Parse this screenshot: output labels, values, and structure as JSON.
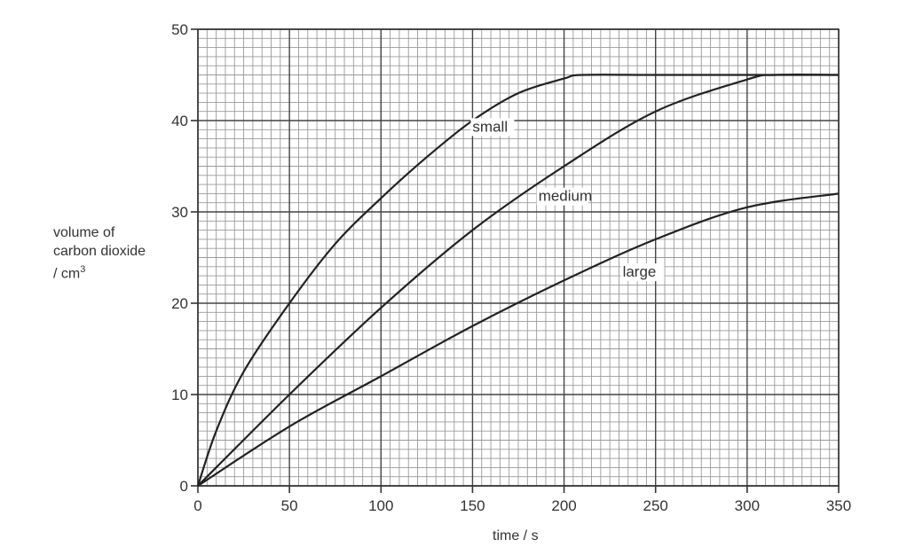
{
  "chart_data": {
    "type": "line",
    "title": "",
    "xlabel": "time / s",
    "ylabel": "volume of carbon dioxide / cm3",
    "ylabel_lines": [
      "volume of",
      "carbon dioxide",
      "/ cm"
    ],
    "ylabel_superscript": "3",
    "xlim": [
      0,
      350
    ],
    "ylim": [
      0,
      50
    ],
    "x_ticks": [
      0,
      50,
      100,
      150,
      200,
      250,
      300,
      350
    ],
    "y_ticks": [
      0,
      10,
      20,
      30,
      40,
      50
    ],
    "grid": {
      "major_x": 50,
      "minor_x": 5,
      "major_y": 10,
      "minor_y": 1
    },
    "legend": "inline labels on curves",
    "series": [
      {
        "name": "small",
        "x": [
          0,
          10,
          25,
          50,
          75,
          100,
          125,
          150,
          175,
          200,
          210,
          250,
          300,
          350
        ],
        "y": [
          0,
          6,
          12.5,
          20,
          26.5,
          31.5,
          36,
          40,
          43,
          44.6,
          45,
          45,
          45,
          45
        ],
        "label_pos": [
          150,
          38.8
        ]
      },
      {
        "name": "medium",
        "x": [
          0,
          50,
          100,
          150,
          200,
          250,
          300,
          315,
          350
        ],
        "y": [
          0,
          10,
          19.5,
          28,
          35,
          41,
          44.5,
          45,
          45
        ],
        "label_pos": [
          186,
          31.2
        ]
      },
      {
        "name": "large",
        "x": [
          0,
          50,
          100,
          150,
          200,
          250,
          300,
          350
        ],
        "y": [
          0,
          6.5,
          12,
          17.5,
          22.5,
          27,
          30.5,
          32
        ],
        "label_pos": [
          232,
          22.9
        ]
      }
    ]
  }
}
